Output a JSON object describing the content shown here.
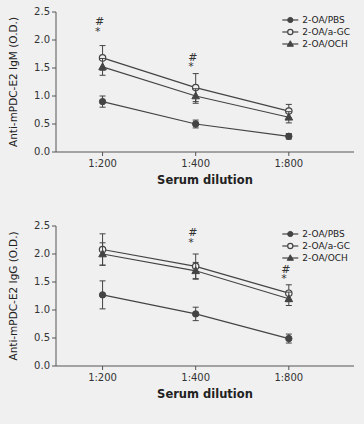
{
  "chart_data": [
    {
      "type": "line",
      "x_label": "Serum dilution",
      "y_label": "Anti-mPDC-E2 IgM (O.D.)",
      "categories": [
        "1:200",
        "1:400",
        "1:800"
      ],
      "xlim": [
        -0.5,
        2.7
      ],
      "ylim": [
        0,
        2.5
      ],
      "yticks": [
        {
          "value": 0.0,
          "label": "0.0"
        },
        0.5,
        {
          "value": 1.0,
          "label": "1.0"
        },
        1.5,
        {
          "value": 2.0,
          "label": "2.0"
        },
        2.5
      ],
      "legend": "upper right",
      "grid": false,
      "series": [
        {
          "name": "2-OA/PBS",
          "color": "#444444",
          "marker": "circle",
          "values": [
            0.9,
            0.5,
            0.28
          ],
          "errors": [
            0.1,
            0.07,
            0.05
          ]
        },
        {
          "name": "2-OA/a-GC",
          "color": "#444444",
          "marker": "open-circle",
          "values": [
            1.68,
            1.15,
            0.73
          ],
          "errors": [
            0.22,
            0.25,
            0.12
          ]
        },
        {
          "name": "2-OA/OCH",
          "color": "#444444",
          "marker": "triangle",
          "values": [
            1.52,
            1.0,
            0.62
          ],
          "errors": [
            0.15,
            0.13,
            0.1
          ]
        }
      ],
      "annotations": [
        {
          "text": "#",
          "x": -0.08,
          "y": 2.32
        },
        {
          "text": "*",
          "x": -0.08,
          "y": 2.14
        },
        {
          "text": "#",
          "x": 0.92,
          "y": 1.68
        },
        {
          "text": "*",
          "x": 0.92,
          "y": 1.52
        }
      ]
    },
    {
      "type": "line",
      "x_label": "Serum dilution",
      "y_label": "Anti-mPDC-E2 IgG (O.D.)",
      "categories": [
        "1:200",
        "1:400",
        "1:800"
      ],
      "xlim": [
        -0.5,
        2.7
      ],
      "ylim": [
        0,
        2.5
      ],
      "yticks": [
        {
          "value": 0.0,
          "label": "0.0"
        },
        0.5,
        {
          "value": 1.0,
          "label": "1.0"
        },
        1.5,
        {
          "value": 2.0,
          "label": "2.0"
        },
        2.5
      ],
      "legend": "upper right",
      "grid": false,
      "series": [
        {
          "name": "2-OA/PBS",
          "color": "#444444",
          "marker": "circle",
          "values": [
            1.27,
            0.93,
            0.49
          ],
          "errors": [
            0.25,
            0.12,
            0.08
          ]
        },
        {
          "name": "2-OA/a-GC",
          "color": "#444444",
          "marker": "open-circle",
          "values": [
            2.08,
            1.78,
            1.3
          ],
          "errors": [
            0.28,
            0.22,
            0.15
          ]
        },
        {
          "name": "2-OA/OCH",
          "color": "#444444",
          "marker": "triangle",
          "values": [
            2.0,
            1.7,
            1.2
          ],
          "errors": [
            0.2,
            0.15,
            0.12
          ]
        }
      ],
      "annotations": [
        {
          "text": "#",
          "x": 0.92,
          "y": 2.38
        },
        {
          "text": "*",
          "x": 0.92,
          "y": 2.2
        },
        {
          "text": "#",
          "x": 1.92,
          "y": 1.72
        },
        {
          "text": "*",
          "x": 1.92,
          "y": 1.56
        }
      ]
    }
  ]
}
